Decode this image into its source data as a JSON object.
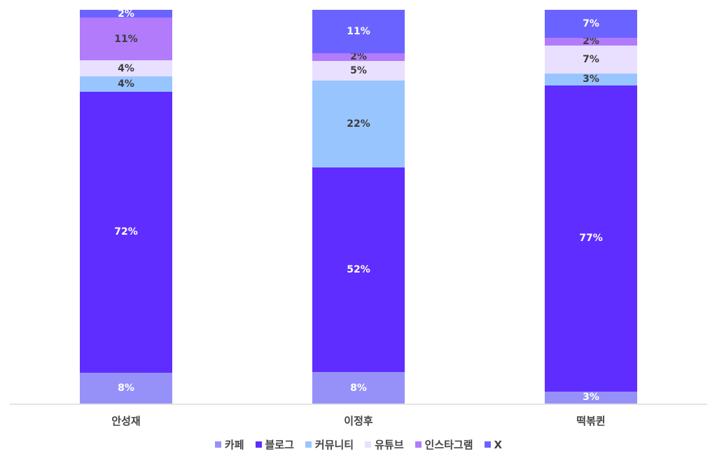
{
  "chart_data": {
    "type": "bar",
    "stacked": true,
    "normalized_percent": true,
    "title": "",
    "xlabel": "",
    "ylabel": "",
    "ylim": [
      0,
      100
    ],
    "grid": false,
    "legend_position": "bottom",
    "categories": [
      "안성재",
      "이정후",
      "떡볶퀸"
    ],
    "series": [
      {
        "name": "카페",
        "color": "#9691f8",
        "label_color": "#ffffff",
        "values": [
          8,
          8,
          3
        ]
      },
      {
        "name": "블로그",
        "color": "#5f2dff",
        "label_color": "#ffffff",
        "values": [
          72,
          52,
          77
        ]
      },
      {
        "name": "커뮤니티",
        "color": "#99c5ff",
        "label_color": "#3d3d3d",
        "values": [
          4,
          22,
          3
        ]
      },
      {
        "name": "유튜브",
        "color": "#e8e0fe",
        "label_color": "#3d3d3d",
        "values": [
          4,
          5,
          7
        ]
      },
      {
        "name": "인스타그램",
        "color": "#b17bfb",
        "label_color": "#3d3d3d",
        "values": [
          11,
          2,
          2
        ]
      },
      {
        "name": "X",
        "color": "#6b63ff",
        "label_color": "#ffffff",
        "values": [
          2,
          11,
          7
        ]
      }
    ]
  },
  "labels": {
    "bar0": [
      "8%",
      "72%",
      "4%",
      "4%",
      "11%",
      "2%"
    ],
    "bar1": [
      "8%",
      "52%",
      "22%",
      "5%",
      "2%",
      "11%"
    ],
    "bar2": [
      "3%",
      "77%",
      "3%",
      "7%",
      "2%",
      "7%"
    ]
  }
}
